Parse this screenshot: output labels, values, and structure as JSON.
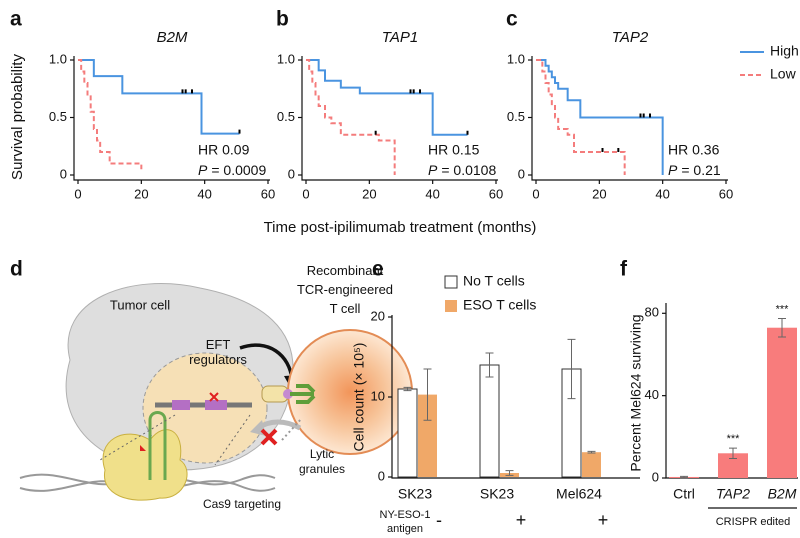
{
  "panel_labels": [
    "a",
    "b",
    "c",
    "d",
    "e",
    "f"
  ],
  "shared_x_label": "Time post-ipilimumab treatment (months)",
  "diagram": {
    "tumor_cell": "Tumor cell",
    "eft_regulators": [
      "EFT",
      "regulators"
    ],
    "t_cell": [
      "Recombinant",
      "TCR-engineered",
      "T cell"
    ],
    "lytic_granules": [
      "Lytic",
      "granules"
    ],
    "cas9": "Cas9 targeting"
  },
  "chart_data": [
    {
      "type": "step",
      "title": "B2M",
      "ylabel": "Survival probability",
      "xlim": [
        0,
        60
      ],
      "xticks": [
        0,
        20,
        40,
        60
      ],
      "ylim": [
        0,
        1
      ],
      "yticks": [
        0,
        0.5,
        {
          "value": 1,
          "label": "1.0"
        }
      ],
      "series": [
        {
          "name": "High",
          "color": "#4a94e0",
          "line_style": "solid",
          "x": [
            0,
            5,
            14,
            39,
            51
          ],
          "values": [
            1,
            0.86,
            0.71,
            0.36,
            0.36
          ],
          "censor_x": [
            33,
            34,
            36,
            51
          ],
          "censor_y": [
            0.71,
            0.71,
            0.71,
            0.36
          ]
        },
        {
          "name": "Low",
          "color": "#f47c7c",
          "line_style": "dashed",
          "x": [
            0,
            1,
            2,
            3,
            4,
            5,
            6,
            7,
            10,
            20
          ],
          "values": [
            1,
            0.9,
            0.8,
            0.7,
            0.55,
            0.4,
            0.3,
            0.2,
            0.1,
            0.05
          ],
          "censor_x": [],
          "censor_y": []
        }
      ],
      "hr": "HR 0.09",
      "p_symbol": "P",
      "p_text": "= 0.0009"
    },
    {
      "type": "step",
      "title": "TAP1",
      "xlim": [
        0,
        60
      ],
      "xticks": [
        0,
        20,
        40,
        60
      ],
      "ylim": [
        0,
        1
      ],
      "yticks": [
        0,
        0.5,
        {
          "value": 1,
          "label": "1.0"
        }
      ],
      "series": [
        {
          "name": "High",
          "color": "#4a94e0",
          "line_style": "solid",
          "x": [
            0,
            4,
            6,
            11,
            17,
            40,
            51
          ],
          "values": [
            1,
            0.91,
            0.82,
            0.76,
            0.71,
            0.35,
            0.35
          ],
          "censor_x": [
            33,
            34,
            36,
            51
          ],
          "censor_y": [
            0.71,
            0.71,
            0.71,
            0.35
          ]
        },
        {
          "name": "Low",
          "color": "#f47c7c",
          "line_style": "dashed",
          "x": [
            0,
            1,
            2,
            3,
            4,
            6,
            8,
            11,
            23,
            28
          ],
          "values": [
            1,
            0.9,
            0.8,
            0.7,
            0.6,
            0.5,
            0.45,
            0.35,
            0.3,
            0
          ],
          "censor_x": [
            22
          ],
          "censor_y": [
            0.35
          ]
        }
      ],
      "hr": "HR 0.15",
      "p_symbol": "P",
      "p_text": "= 0.0108"
    },
    {
      "type": "step",
      "title": "TAP2",
      "legend": "upper right",
      "xlim": [
        0,
        60
      ],
      "xticks": [
        0,
        20,
        40,
        60
      ],
      "ylim": [
        0,
        1
      ],
      "yticks": [
        0,
        0.5,
        {
          "value": 1,
          "label": "1.0"
        }
      ],
      "series": [
        {
          "name": "High",
          "color": "#4a94e0",
          "line_style": "solid",
          "x": [
            0,
            3,
            4,
            5,
            6,
            7,
            10,
            14,
            40
          ],
          "values": [
            1,
            0.95,
            0.9,
            0.85,
            0.8,
            0.75,
            0.65,
            0.5,
            0
          ],
          "censor_x": [
            33,
            34,
            36
          ],
          "censor_y": [
            0.5,
            0.5,
            0.5
          ]
        },
        {
          "name": "Low",
          "color": "#f47c7c",
          "line_style": "dashed",
          "x": [
            0,
            2,
            3,
            4,
            5,
            6,
            7,
            10,
            12,
            28
          ],
          "values": [
            1,
            0.9,
            0.8,
            0.7,
            0.6,
            0.5,
            0.4,
            0.35,
            0.2,
            0
          ],
          "censor_x": [
            21,
            26
          ],
          "censor_y": [
            0.2,
            0.2
          ]
        }
      ],
      "hr": "HR 0.36",
      "p_symbol": "P",
      "p_text": "= 0.21"
    },
    {
      "type": "grouped_bar",
      "ylabel": "Cell count (× 10⁵)",
      "categories": [
        "SK23",
        "SK23",
        "Mel624"
      ],
      "ylim": [
        0,
        20
      ],
      "yticks": [
        0,
        10,
        20
      ],
      "series": [
        {
          "name": "No T cells",
          "color": "#ffffff",
          "edgecolor": "#333333",
          "values": [
            11,
            14,
            13.5
          ],
          "errors": [
            0.2,
            1.5,
            3.7
          ]
        },
        {
          "name": "ESO T cells",
          "color": "#f0a868",
          "values": [
            10.3,
            0.5,
            3.1
          ],
          "errors": [
            3.2,
            0.3,
            0.1
          ]
        }
      ],
      "antigen_label": [
        "NY-ESO-1",
        "antigen"
      ],
      "antigen": [
        "-",
        "+",
        "+"
      ]
    },
    {
      "type": "bar",
      "ylabel": "Percent Mel624 surviving",
      "categories": [
        "Ctrl",
        "TAP2",
        "B2M"
      ],
      "values": [
        0.5,
        12,
        73
      ],
      "errors": [
        0.3,
        2.5,
        4.5
      ],
      "color": "#f87c7c",
      "ylim": [
        0,
        85
      ],
      "yticks": [
        0,
        40,
        80
      ],
      "significance": [
        null,
        "***",
        "***"
      ],
      "group_label": "CRISPR edited"
    }
  ]
}
